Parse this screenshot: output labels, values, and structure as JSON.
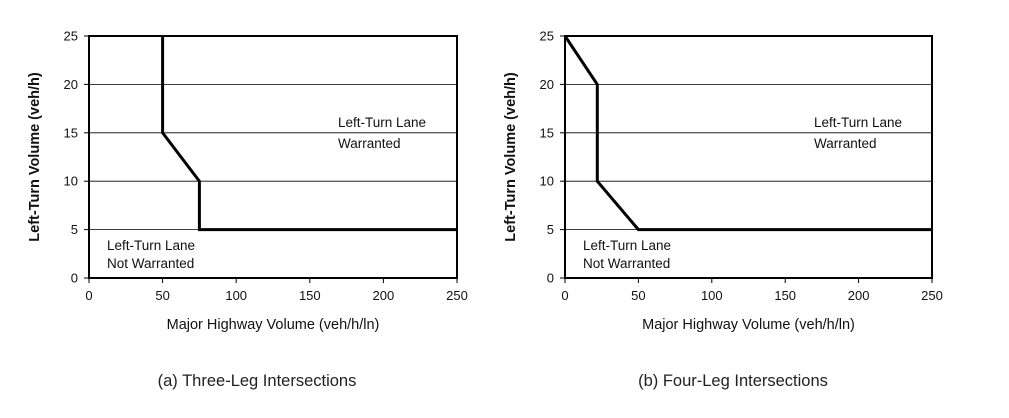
{
  "chart_data": [
    {
      "type": "line",
      "title": "",
      "xlabel": "Major Highway Volume (veh/h/ln)",
      "ylabel": "Left-Turn Volume (veh/h)",
      "xlim": [
        0,
        250
      ],
      "ylim": [
        0,
        25
      ],
      "xticks": [
        "0",
        "50",
        "100",
        "150",
        "200",
        "250"
      ],
      "yticks": [
        "0",
        "5",
        "10",
        "15",
        "20",
        "25"
      ],
      "grid": "horizontal",
      "series": [
        {
          "x": [
            50,
            50,
            75,
            75,
            250
          ],
          "y": [
            25,
            15,
            10,
            5,
            5
          ]
        }
      ],
      "annotations": {
        "warranted": [
          "Left-Turn Lane",
          "Warranted"
        ],
        "not_warranted": [
          "Left-Turn Lane",
          "Not Warranted"
        ]
      },
      "caption": "(a) Three-Leg Intersections"
    },
    {
      "type": "line",
      "title": "",
      "xlabel": "Major Highway Volume (veh/h/ln)",
      "ylabel": "Left-Turn Volume (veh/h)",
      "xlim": [
        0,
        250
      ],
      "ylim": [
        0,
        25
      ],
      "xticks": [
        "0",
        "50",
        "100",
        "150",
        "200",
        "250"
      ],
      "yticks": [
        "0",
        "5",
        "10",
        "15",
        "20",
        "25"
      ],
      "grid": "horizontal",
      "series": [
        {
          "x": [
            0,
            22,
            22,
            50,
            250
          ],
          "y": [
            25,
            20,
            10,
            5,
            5
          ]
        }
      ],
      "annotations": {
        "warranted": [
          "Left-Turn Lane",
          "Warranted"
        ],
        "not_warranted": [
          "Left-Turn Lane",
          "Not Warranted"
        ]
      },
      "caption": "(b) Four-Leg Intersections"
    }
  ]
}
